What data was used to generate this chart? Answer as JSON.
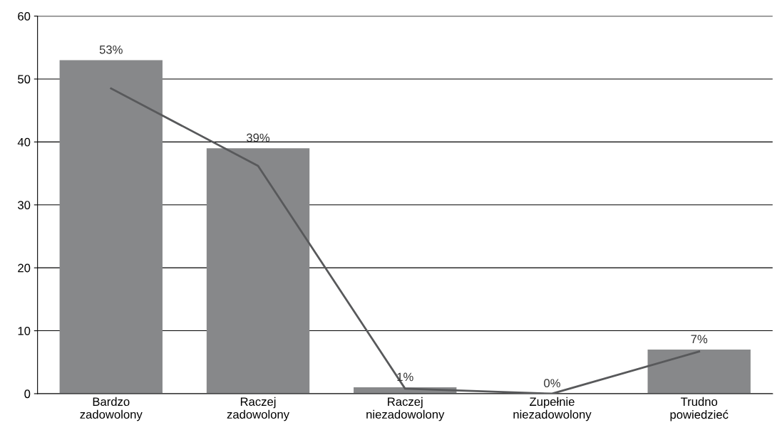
{
  "chart_data": {
    "type": "bar",
    "categories": [
      "Bardzo\nzadowolony",
      "Raczej\nzadowolony",
      "Raczej\nniezadowolony",
      "Zupełnie\nniezadowolony",
      "Trudno\npowiedzieć"
    ],
    "series": [
      {
        "color": "#87888a",
        "values": [
          53,
          39,
          1,
          0,
          7
        ],
        "value_labels": [
          "53%",
          "39%",
          "1%",
          "0%",
          "7%"
        ]
      },
      {
        "type": "line",
        "color": "#58595b",
        "values": [
          48.5,
          36.2,
          0.8,
          0,
          6.7
        ]
      }
    ],
    "ylim": [
      0,
      60
    ],
    "yticks": [
      0,
      10,
      20,
      30,
      40,
      50,
      60
    ],
    "grid": "y"
  }
}
